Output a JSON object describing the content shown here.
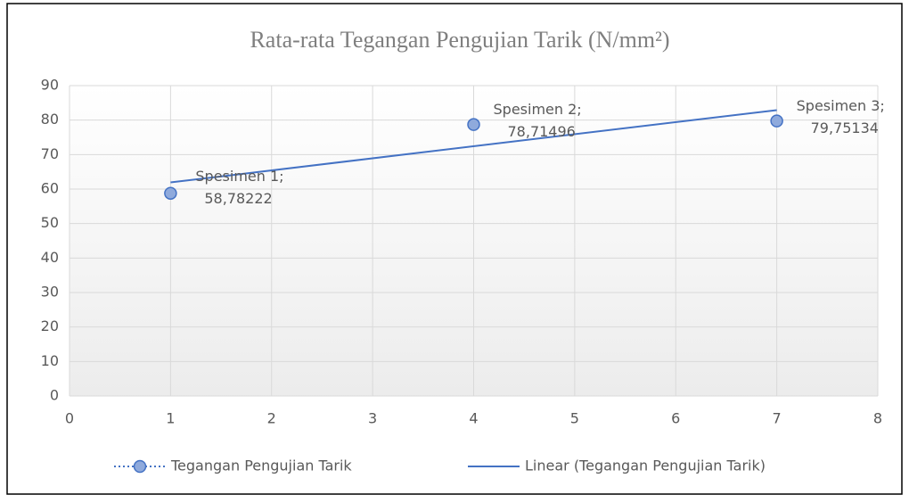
{
  "chart_data": {
    "type": "scatter",
    "title": "Rata-rata Tegangan Pengujian Tarik (N/mm²)",
    "series": [
      {
        "name": "Tegangan Pengujian Tarik",
        "color": "#4472c4",
        "x": [
          1,
          4,
          7
        ],
        "values": [
          58.78222,
          78.71496,
          79.75134
        ],
        "point_labels": [
          "Spesimen 1;",
          "Spesimen 2;",
          "Spesimen 3;"
        ],
        "value_labels": [
          "58,78222",
          "78,71496",
          "79,75134"
        ]
      },
      {
        "name": "Linear (Tegangan Pengujian Tarik)",
        "color": "#4472c4",
        "x": [
          1,
          7
        ],
        "values": [
          61.93,
          82.9
        ]
      }
    ],
    "xlim": [
      0,
      8
    ],
    "xticks": [
      0,
      1,
      2,
      3,
      4,
      5,
      6,
      7,
      8
    ],
    "ylim": [
      0,
      90
    ],
    "yticks": [
      0,
      10,
      20,
      30,
      40,
      50,
      60,
      70,
      80,
      90
    ],
    "grid": true,
    "legend": "bottom"
  }
}
